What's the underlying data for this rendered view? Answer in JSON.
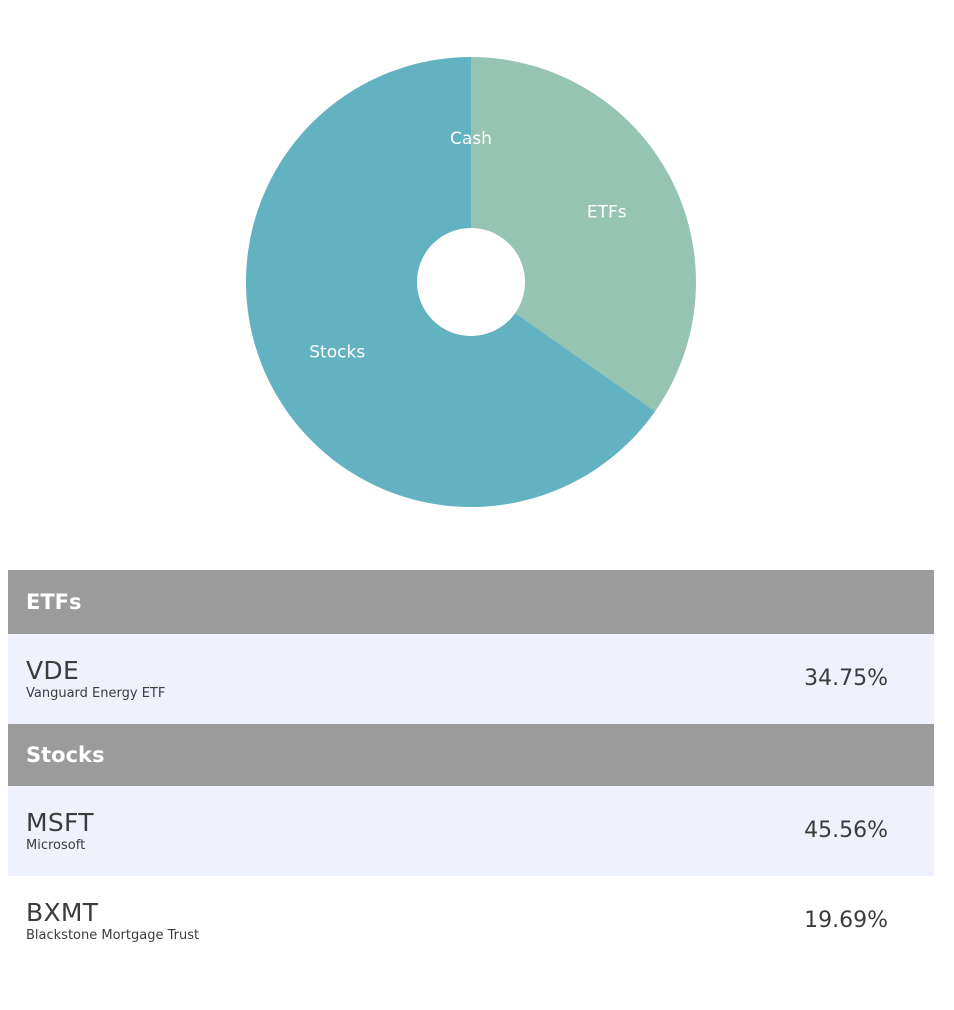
{
  "chart_data": {
    "type": "pie",
    "categories": [
      "Cash",
      "ETFs",
      "Stocks"
    ],
    "values": [
      0,
      34.75,
      65.25
    ],
    "colors": [
      "#63b2c2",
      "#96c4b2",
      "#63b2c2"
    ],
    "donut": true,
    "label_color": "#ffffff"
  },
  "holdings": {
    "groups": [
      {
        "header": "ETFs",
        "rows": [
          {
            "ticker": "VDE",
            "name": "Vanguard Energy ETF",
            "percent": "34.75%"
          }
        ]
      },
      {
        "header": "Stocks",
        "rows": [
          {
            "ticker": "MSFT",
            "name": "Microsoft",
            "percent": "45.56%"
          },
          {
            "ticker": "BXMT",
            "name": "Blackstone Mortgage Trust",
            "percent": "19.69%"
          }
        ]
      }
    ]
  },
  "colors": {
    "header_bg": "#9b9b9b",
    "row_shaded": "#eff2fd",
    "row_plain": "#ffffff",
    "text": "#3c3c3c"
  }
}
